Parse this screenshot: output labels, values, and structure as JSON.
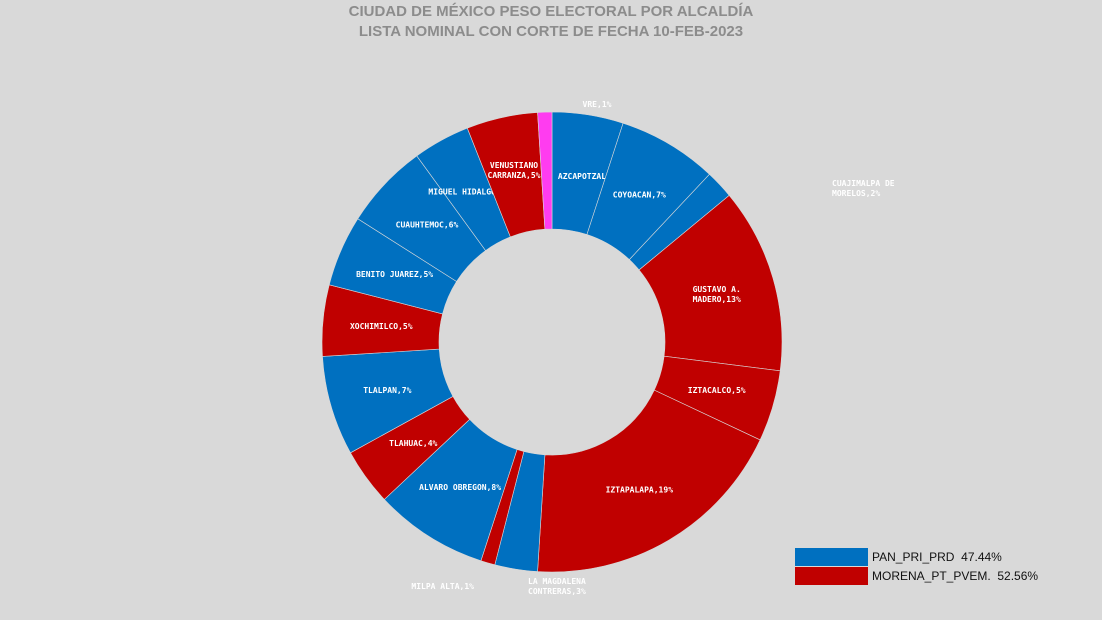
{
  "chart_data": {
    "type": "pie",
    "donut": true,
    "title": "CIUDAD DE MÉXICO PESO ELECTORAL POR ALCALDÍA",
    "subtitle": "LISTA NOMINAL CON CORTE DE FECHA 10-FEB-2023",
    "slices": [
      {
        "label": "AZCAPOTZALCO",
        "value": 5,
        "group": "PAN_PRI_PRD"
      },
      {
        "label": "COYOACAN",
        "value": 7,
        "group": "PAN_PRI_PRD"
      },
      {
        "label": "CUAJIMALPA DE MORELOS",
        "value": 2,
        "group": "PAN_PRI_PRD"
      },
      {
        "label": "GUSTAVO A. MADERO",
        "value": 13,
        "group": "MORENA_PT_PVEM"
      },
      {
        "label": "IZTACALCO",
        "value": 5,
        "group": "MORENA_PT_PVEM"
      },
      {
        "label": "IZTAPALAPA",
        "value": 19,
        "group": "MORENA_PT_PVEM"
      },
      {
        "label": "LA MAGDALENA CONTRERAS",
        "value": 3,
        "group": "PAN_PRI_PRD"
      },
      {
        "label": "MILPA ALTA",
        "value": 1,
        "group": "MORENA_PT_PVEM"
      },
      {
        "label": "ALVARO OBREGON",
        "value": 8,
        "group": "PAN_PRI_PRD"
      },
      {
        "label": "TLAHUAC",
        "value": 4,
        "group": "MORENA_PT_PVEM"
      },
      {
        "label": "TLALPAN",
        "value": 7,
        "group": "PAN_PRI_PRD"
      },
      {
        "label": "XOCHIMILCO",
        "value": 5,
        "group": "MORENA_PT_PVEM"
      },
      {
        "label": "BENITO JUAREZ",
        "value": 5,
        "group": "PAN_PRI_PRD"
      },
      {
        "label": "CUAUHTEMOC",
        "value": 6,
        "group": "PAN_PRI_PRD"
      },
      {
        "label": "MIGUEL HIDALGO",
        "value": 4,
        "group": "PAN_PRI_PRD"
      },
      {
        "label": "VENUSTIANO CARRANZA",
        "value": 5,
        "group": "MORENA_PT_PVEM"
      },
      {
        "label": "VRE",
        "value": 1,
        "group": "VRE"
      }
    ],
    "colors": {
      "PAN_PRI_PRD": "#0070c0",
      "MORENA_PT_PVEM": "#c00000",
      "VRE": "#ff3cf0"
    },
    "legend": [
      {
        "label": "PAN_PRI_PRD",
        "value": "47.44%",
        "color": "#0070c0"
      },
      {
        "label": "MORENA_PT_PVEM.",
        "value": "52.56%",
        "color": "#c00000"
      }
    ],
    "legend_position": "bottom-right"
  }
}
